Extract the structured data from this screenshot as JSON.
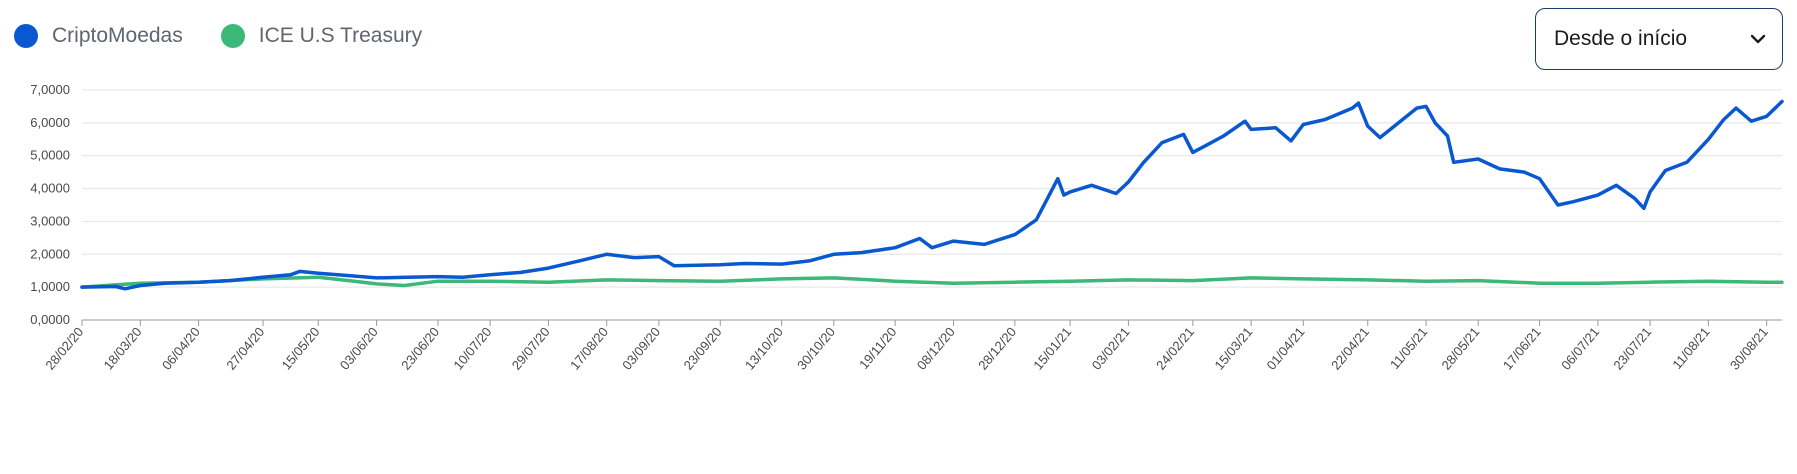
{
  "legend": [
    {
      "label": "CriptoMoedas",
      "color": "#0a58d0"
    },
    {
      "label": "ICE U.S Treasury",
      "color": "#3cb878"
    }
  ],
  "period_select": {
    "value": "Desde o início",
    "icon": "chevron-down-icon"
  },
  "chart_data": {
    "type": "line",
    "ylim": [
      0,
      7
    ],
    "yticks": [
      "0,0000",
      "1,0000",
      "2,0000",
      "3,0000",
      "4,0000",
      "5,0000",
      "6,0000",
      "7,0000"
    ],
    "x": [
      "28/02/20",
      "18/03/20",
      "06/04/20",
      "27/04/20",
      "15/05/20",
      "03/06/20",
      "23/06/20",
      "10/07/20",
      "29/07/20",
      "17/08/20",
      "03/09/20",
      "23/09/20",
      "13/10/20",
      "30/10/20",
      "19/11/20",
      "08/12/20",
      "28/12/20",
      "15/01/21",
      "03/02/21",
      "24/02/21",
      "15/03/21",
      "01/04/21",
      "22/04/21",
      "11/05/21",
      "28/05/21",
      "17/06/21",
      "06/07/21",
      "23/07/21",
      "11/08/21",
      "30/08/21"
    ],
    "grid": true,
    "legend_position": "top-left",
    "series": [
      {
        "name": "CriptoMoedas",
        "color": "#0a58d0",
        "points": [
          {
            "x": "28/02/20",
            "y": 1.0
          },
          {
            "x": "10/03/20",
            "y": 1.02
          },
          {
            "x": "13/03/20",
            "y": 0.95
          },
          {
            "x": "18/03/20",
            "y": 1.05
          },
          {
            "x": "26/03/20",
            "y": 1.12
          },
          {
            "x": "06/04/20",
            "y": 1.15
          },
          {
            "x": "16/04/20",
            "y": 1.2
          },
          {
            "x": "27/04/20",
            "y": 1.3
          },
          {
            "x": "06/05/20",
            "y": 1.38
          },
          {
            "x": "09/05/20",
            "y": 1.48
          },
          {
            "x": "15/05/20",
            "y": 1.42
          },
          {
            "x": "25/05/20",
            "y": 1.35
          },
          {
            "x": "03/06/20",
            "y": 1.28
          },
          {
            "x": "13/06/20",
            "y": 1.3
          },
          {
            "x": "23/06/20",
            "y": 1.32
          },
          {
            "x": "01/07/20",
            "y": 1.3
          },
          {
            "x": "10/07/20",
            "y": 1.38
          },
          {
            "x": "20/07/20",
            "y": 1.45
          },
          {
            "x": "29/07/20",
            "y": 1.58
          },
          {
            "x": "08/08/20",
            "y": 1.8
          },
          {
            "x": "17/08/20",
            "y": 2.0
          },
          {
            "x": "26/08/20",
            "y": 1.9
          },
          {
            "x": "03/09/20",
            "y": 1.93
          },
          {
            "x": "08/09/20",
            "y": 1.65
          },
          {
            "x": "23/09/20",
            "y": 1.68
          },
          {
            "x": "01/10/20",
            "y": 1.72
          },
          {
            "x": "13/10/20",
            "y": 1.7
          },
          {
            "x": "22/10/20",
            "y": 1.8
          },
          {
            "x": "30/10/20",
            "y": 2.0
          },
          {
            "x": "08/11/20",
            "y": 2.05
          },
          {
            "x": "19/11/20",
            "y": 2.2
          },
          {
            "x": "27/11/20",
            "y": 2.48
          },
          {
            "x": "01/12/20",
            "y": 2.2
          },
          {
            "x": "08/12/20",
            "y": 2.4
          },
          {
            "x": "18/12/20",
            "y": 2.3
          },
          {
            "x": "28/12/20",
            "y": 2.6
          },
          {
            "x": "04/01/21",
            "y": 3.05
          },
          {
            "x": "11/01/21",
            "y": 4.3
          },
          {
            "x": "13/01/21",
            "y": 3.8
          },
          {
            "x": "15/01/21",
            "y": 3.9
          },
          {
            "x": "22/01/21",
            "y": 4.1
          },
          {
            "x": "30/01/21",
            "y": 3.85
          },
          {
            "x": "03/02/21",
            "y": 4.2
          },
          {
            "x": "08/02/21",
            "y": 4.8
          },
          {
            "x": "14/02/21",
            "y": 5.4
          },
          {
            "x": "21/02/21",
            "y": 5.65
          },
          {
            "x": "24/02/21",
            "y": 5.1
          },
          {
            "x": "28/02/21",
            "y": 5.3
          },
          {
            "x": "06/03/21",
            "y": 5.6
          },
          {
            "x": "13/03/21",
            "y": 6.05
          },
          {
            "x": "15/03/21",
            "y": 5.8
          },
          {
            "x": "23/03/21",
            "y": 5.85
          },
          {
            "x": "28/03/21",
            "y": 5.45
          },
          {
            "x": "01/04/21",
            "y": 5.95
          },
          {
            "x": "08/04/21",
            "y": 6.1
          },
          {
            "x": "17/04/21",
            "y": 6.45
          },
          {
            "x": "19/04/21",
            "y": 6.6
          },
          {
            "x": "22/04/21",
            "y": 5.9
          },
          {
            "x": "26/04/21",
            "y": 5.55
          },
          {
            "x": "02/05/21",
            "y": 6.0
          },
          {
            "x": "08/05/21",
            "y": 6.45
          },
          {
            "x": "11/05/21",
            "y": 6.5
          },
          {
            "x": "14/05/21",
            "y": 6.0
          },
          {
            "x": "18/05/21",
            "y": 5.6
          },
          {
            "x": "20/05/21",
            "y": 4.8
          },
          {
            "x": "28/05/21",
            "y": 4.9
          },
          {
            "x": "04/06/21",
            "y": 4.6
          },
          {
            "x": "12/06/21",
            "y": 4.5
          },
          {
            "x": "17/06/21",
            "y": 4.3
          },
          {
            "x": "23/06/21",
            "y": 3.5
          },
          {
            "x": "28/06/21",
            "y": 3.6
          },
          {
            "x": "06/07/21",
            "y": 3.8
          },
          {
            "x": "12/07/21",
            "y": 4.1
          },
          {
            "x": "18/07/21",
            "y": 3.7
          },
          {
            "x": "21/07/21",
            "y": 3.4
          },
          {
            "x": "23/07/21",
            "y": 3.9
          },
          {
            "x": "28/07/21",
            "y": 4.55
          },
          {
            "x": "04/08/21",
            "y": 4.8
          },
          {
            "x": "11/08/21",
            "y": 5.5
          },
          {
            "x": "16/08/21",
            "y": 6.1
          },
          {
            "x": "20/08/21",
            "y": 6.45
          },
          {
            "x": "25/08/21",
            "y": 6.05
          },
          {
            "x": "30/08/21",
            "y": 6.2
          },
          {
            "x": "04/09/21",
            "y": 6.65
          }
        ]
      },
      {
        "name": "ICE U.S Treasury",
        "color": "#3cb878",
        "points": [
          {
            "x": "28/02/20",
            "y": 1.0
          },
          {
            "x": "18/03/20",
            "y": 1.12
          },
          {
            "x": "06/04/20",
            "y": 1.15
          },
          {
            "x": "27/04/20",
            "y": 1.25
          },
          {
            "x": "15/05/20",
            "y": 1.3
          },
          {
            "x": "25/05/20",
            "y": 1.2
          },
          {
            "x": "03/06/20",
            "y": 1.1
          },
          {
            "x": "12/06/20",
            "y": 1.05
          },
          {
            "x": "23/06/20",
            "y": 1.18
          },
          {
            "x": "10/07/20",
            "y": 1.18
          },
          {
            "x": "29/07/20",
            "y": 1.15
          },
          {
            "x": "17/08/20",
            "y": 1.22
          },
          {
            "x": "03/09/20",
            "y": 1.2
          },
          {
            "x": "23/09/20",
            "y": 1.18
          },
          {
            "x": "13/10/20",
            "y": 1.25
          },
          {
            "x": "30/10/20",
            "y": 1.28
          },
          {
            "x": "19/11/20",
            "y": 1.18
          },
          {
            "x": "08/12/20",
            "y": 1.12
          },
          {
            "x": "28/12/20",
            "y": 1.15
          },
          {
            "x": "15/01/21",
            "y": 1.18
          },
          {
            "x": "03/02/21",
            "y": 1.22
          },
          {
            "x": "24/02/21",
            "y": 1.2
          },
          {
            "x": "15/03/21",
            "y": 1.28
          },
          {
            "x": "01/04/21",
            "y": 1.25
          },
          {
            "x": "22/04/21",
            "y": 1.22
          },
          {
            "x": "11/05/21",
            "y": 1.18
          },
          {
            "x": "28/05/21",
            "y": 1.2
          },
          {
            "x": "17/06/21",
            "y": 1.12
          },
          {
            "x": "06/07/21",
            "y": 1.12
          },
          {
            "x": "23/07/21",
            "y": 1.15
          },
          {
            "x": "11/08/21",
            "y": 1.18
          },
          {
            "x": "30/08/21",
            "y": 1.15
          },
          {
            "x": "04/09/21",
            "y": 1.15
          }
        ]
      }
    ]
  }
}
